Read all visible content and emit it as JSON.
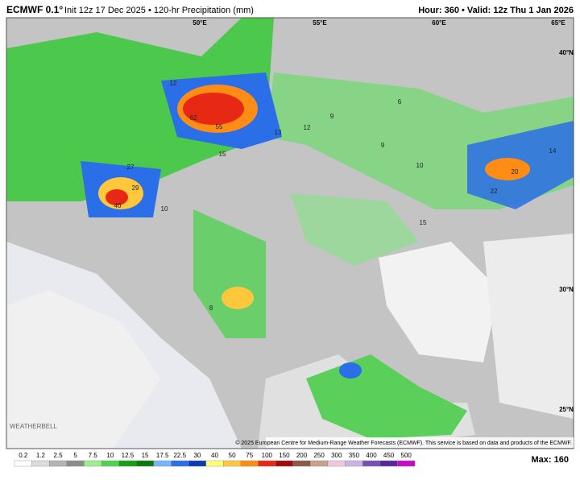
{
  "header": {
    "model": "ECMWF 0.1°",
    "subtitle": "Init 12z 17 Dec 2025 • 120-hr Precipitation (mm)",
    "valid": "Hour: 360 • Valid: 12z Thu 1 Jan 2026"
  },
  "coordinates": [
    "50°E",
    "55°E",
    "60°E",
    "65°E",
    "40°N",
    "30°N",
    "25°N"
  ],
  "map_labels": [
    12,
    62,
    55,
    13,
    12,
    27,
    29,
    40,
    15,
    20,
    22,
    14,
    15,
    10,
    9,
    6,
    9,
    10,
    8
  ],
  "logo": "WEATHERBELL",
  "copyright": "© 2025 European Centre for Medium-Range Weather Forecasts (ECMWF). This service is based on data and products of the ECMWF.",
  "colorbar": {
    "labels": [
      "0.2",
      "1.2",
      "2.5",
      "5",
      "7.5",
      "10",
      "12.5",
      "15",
      "17.5",
      "22.5",
      "30",
      "40",
      "50",
      "75",
      "100",
      "150",
      "200",
      "250",
      "300",
      "350",
      "400",
      "450",
      "500"
    ],
    "colors": [
      "#ffffff",
      "#dcdcdc",
      "#b4b4b4",
      "#8c8c8c",
      "#9cf08c",
      "#50d250",
      "#14a014",
      "#0a7a0a",
      "#78b4ff",
      "#2a6ee8",
      "#0c3cb4",
      "#ffff78",
      "#ffc83c",
      "#ff8c14",
      "#e62814",
      "#a00a0a",
      "#8c5a46",
      "#c8a08c",
      "#f0c8dc",
      "#c8b4e6",
      "#7850b4",
      "#5a2896",
      "#c80ac8"
    ]
  },
  "max": "Max: 160"
}
